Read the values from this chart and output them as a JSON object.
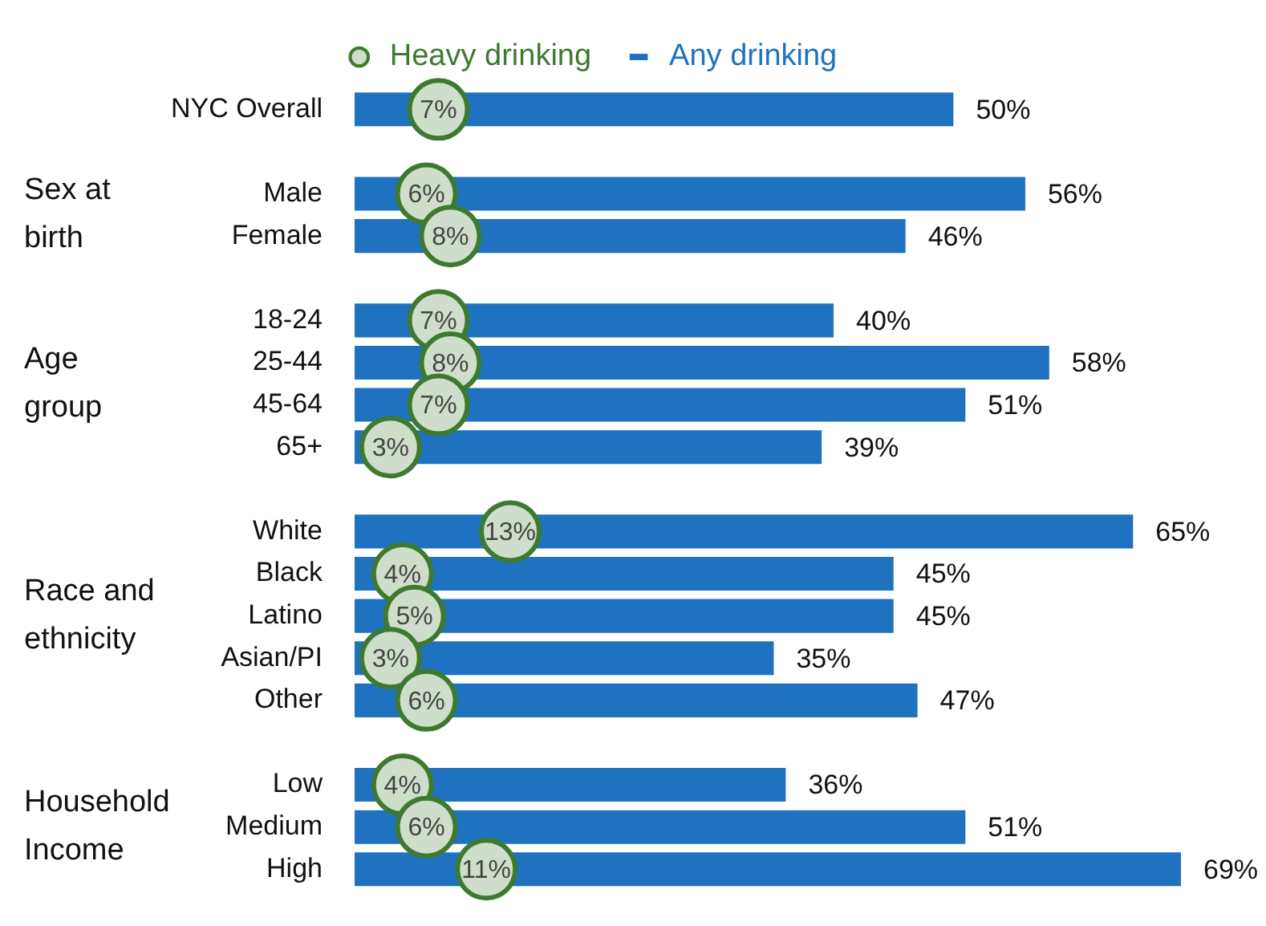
{
  "chart_data": {
    "type": "bar",
    "orientation": "horizontal",
    "legend": "top",
    "categories": [
      "NYC Overall",
      null,
      "Male",
      "Female",
      null,
      "18-24",
      "25-44",
      "45-64",
      "65+",
      null,
      "White",
      "Black",
      "Latino",
      "Asian/PI",
      "Other",
      null,
      "Low",
      "Medium",
      "High"
    ],
    "series": [
      {
        "name": "Any drinking",
        "type": "bar",
        "color": "#1f72bf",
        "values": [
          50,
          null,
          56,
          46,
          null,
          40,
          58,
          51,
          39,
          null,
          65,
          45,
          45,
          35,
          47,
          null,
          36,
          51,
          69
        ],
        "value_labels": [
          "50%",
          null,
          "56%",
          "46%",
          null,
          "40%",
          "58%",
          "51%",
          "39%",
          null,
          "65%",
          "45%",
          "45%",
          "35%",
          "47%",
          null,
          "36%",
          "51%",
          "69%"
        ]
      },
      {
        "name": "Heavy drinking",
        "type": "scatter",
        "marker": "circle",
        "color": "#3d7a2f",
        "values": [
          7,
          null,
          6,
          8,
          null,
          7,
          8,
          7,
          3,
          null,
          13,
          4,
          5,
          3,
          6,
          null,
          4,
          6,
          11
        ],
        "value_labels": [
          "7%",
          null,
          "6%",
          "8%",
          null,
          "7%",
          "8%",
          "7%",
          "3%",
          null,
          "13%",
          "4%",
          "5%",
          "3%",
          "6%",
          null,
          "4%",
          "6%",
          "11%"
        ]
      }
    ],
    "annotations": [
      "Sex at\nbirth",
      "Age\ngroup",
      "Race and\nethnicity",
      "Household\nIncome"
    ]
  }
}
